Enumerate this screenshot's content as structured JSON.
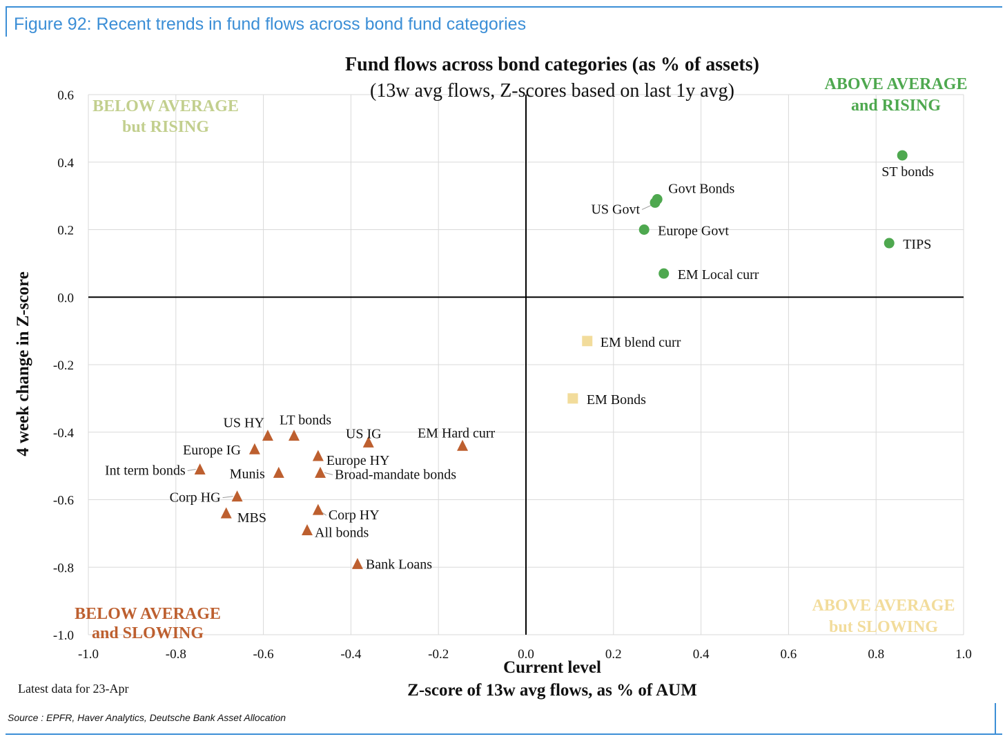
{
  "figure_title": "Figure 92: Recent trends in fund flows across bond fund categories",
  "note": "Latest data for 23-Apr",
  "source": "Source : EPFR, Haver Analytics, Deutsche Bank Asset Allocation",
  "colors": {
    "frame": "#3b8ed6",
    "green": "#4ea84f",
    "yellow": "#f2dc9b",
    "orange": "#bd5f2f",
    "quad_tl": "#c2cf8e",
    "quad_tr": "#4ea84f",
    "quad_bl": "#bd5f2f",
    "quad_br": "#f2dc9b",
    "grid": "#d9d9d9"
  },
  "chart_data": {
    "type": "scatter",
    "title": "Fund flows across bond categories (as % of assets)",
    "subtitle": "(13w avg flows, Z-scores based on last 1y avg)",
    "xlabel": "Current level",
    "xlabel2": "Z-score of 13w avg flows, as % of AUM",
    "ylabel": "4 week change in Z-score",
    "xlim": [
      -1.0,
      1.0
    ],
    "ylim": [
      -1.0,
      0.6
    ],
    "grid": true,
    "x_ticks": [
      -1.0,
      -0.8,
      -0.6,
      -0.4,
      -0.2,
      0.0,
      0.2,
      0.4,
      0.6,
      0.8,
      1.0
    ],
    "y_ticks": [
      -1.0,
      -0.8,
      -0.6,
      -0.4,
      -0.2,
      0.0,
      0.2,
      0.4,
      0.6
    ],
    "x_tick_labels": [
      "-1.0",
      "-0.8",
      "-0.6",
      "-0.4",
      "-0.2",
      "0.0",
      "0.2",
      "0.4",
      "0.6",
      "0.8",
      "1.0"
    ],
    "y_tick_labels": [
      "-1.0",
      "-0.8",
      "-0.6",
      "-0.4",
      "-0.2",
      "0.0",
      "0.2",
      "0.4",
      "0.6"
    ],
    "quadrant_labels": {
      "top_left": [
        "BELOW AVERAGE",
        "but RISING"
      ],
      "top_right": [
        "ABOVE AVERAGE",
        "and RISING"
      ],
      "bottom_left": [
        "BELOW AVERAGE",
        "and SLOWING"
      ],
      "bottom_right": [
        "ABOVE AVERAGE",
        "but SLOWING"
      ]
    },
    "series": [
      {
        "group": "above_rising",
        "marker": "circle",
        "points": [
          {
            "label": "ST bonds",
            "x": 0.86,
            "y": 0.42
          },
          {
            "label": "Govt Bonds",
            "x": 0.3,
            "y": 0.29
          },
          {
            "label": "US Govt",
            "x": 0.295,
            "y": 0.28
          },
          {
            "label": "Europe Govt",
            "x": 0.27,
            "y": 0.2
          },
          {
            "label": "TIPS",
            "x": 0.83,
            "y": 0.16
          },
          {
            "label": "EM Local curr",
            "x": 0.315,
            "y": 0.07
          }
        ]
      },
      {
        "group": "above_slowing",
        "marker": "square",
        "points": [
          {
            "label": "EM blend curr",
            "x": 0.14,
            "y": -0.13
          },
          {
            "label": "EM Bonds",
            "x": 0.107,
            "y": -0.3
          }
        ]
      },
      {
        "group": "below_slowing",
        "marker": "triangle",
        "points": [
          {
            "label": "US HY",
            "x": -0.59,
            "y": -0.41
          },
          {
            "label": "LT bonds",
            "x": -0.53,
            "y": -0.41
          },
          {
            "label": "US IG",
            "x": -0.36,
            "y": -0.43
          },
          {
            "label": "EM Hard curr",
            "x": -0.145,
            "y": -0.44
          },
          {
            "label": "Europe IG",
            "x": -0.62,
            "y": -0.45
          },
          {
            "label": "Europe HY",
            "x": -0.475,
            "y": -0.47
          },
          {
            "label": "Int term bonds",
            "x": -0.745,
            "y": -0.51
          },
          {
            "label": "Munis",
            "x": -0.565,
            "y": -0.52
          },
          {
            "label": "Broad-mandate bonds",
            "x": -0.47,
            "y": -0.52
          },
          {
            "label": "Corp HG",
            "x": -0.66,
            "y": -0.59
          },
          {
            "label": "MBS",
            "x": -0.685,
            "y": -0.64
          },
          {
            "label": "Corp HY",
            "x": -0.475,
            "y": -0.63
          },
          {
            "label": "All bonds",
            "x": -0.5,
            "y": -0.69
          },
          {
            "label": "Bank Loans",
            "x": -0.385,
            "y": -0.79
          }
        ]
      }
    ]
  }
}
